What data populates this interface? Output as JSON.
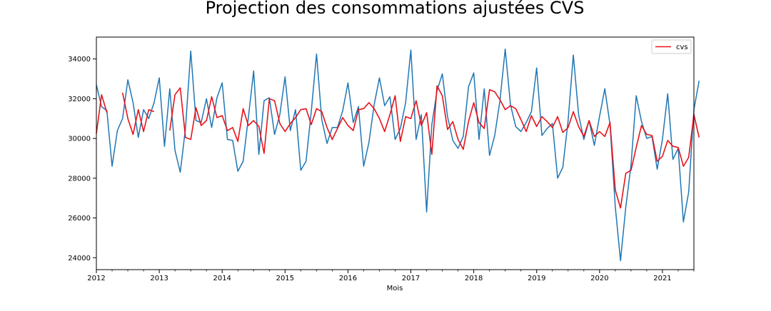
{
  "chart_data": {
    "type": "line",
    "title": "Projection des consommations ajustées CVS",
    "xlabel": "Mois",
    "ylabel": "",
    "xlim": [
      2012.0,
      2021.5
    ],
    "ylim": [
      23400,
      35100
    ],
    "x_ticks": [
      2012,
      2013,
      2014,
      2015,
      2016,
      2017,
      2018,
      2019,
      2020,
      2021
    ],
    "x_tick_labels": [
      "2012",
      "2013",
      "2014",
      "2015",
      "2016",
      "2017",
      "2018",
      "2019",
      "2020",
      "2021"
    ],
    "y_ticks": [
      24000,
      26000,
      28000,
      30000,
      32000,
      34000
    ],
    "y_tick_labels": [
      "24000",
      "26000",
      "28000",
      "30000",
      "32000",
      "34000"
    ],
    "grid": false,
    "legend": {
      "position": "top-right",
      "entries": [
        "cvs"
      ]
    },
    "x_start": "2012-01",
    "x_step": "month",
    "series": [
      {
        "name": "",
        "color": "#1f77b4",
        "values": [
          32700,
          31600,
          31400,
          28600,
          30400,
          31000,
          32950,
          31800,
          30050,
          31450,
          31000,
          31800,
          33050,
          29600,
          32500,
          29400,
          28300,
          30500,
          34400,
          30900,
          30800,
          32000,
          30550,
          32050,
          32800,
          29950,
          29900,
          28350,
          28850,
          31050,
          33400,
          29200,
          31900,
          32050,
          30200,
          31200,
          33100,
          30400,
          31450,
          28400,
          28850,
          31350,
          34250,
          30950,
          29750,
          30550,
          30550,
          31400,
          32800,
          30800,
          31600,
          28600,
          29800,
          31700,
          33050,
          31650,
          32100,
          29950,
          30500,
          31800,
          34450,
          29950,
          31200,
          26300,
          30700,
          32400,
          33250,
          31100,
          29900,
          29500,
          30100,
          32600,
          33300,
          29950,
          32500,
          29150,
          30150,
          31900,
          34500,
          31700,
          30600,
          30350,
          30800,
          31350,
          33550,
          30150,
          30500,
          30750,
          28000,
          28550,
          30900,
          34200,
          31200,
          29950,
          30900,
          29650,
          31100,
          32500,
          30700,
          26550,
          23850,
          26550,
          28650,
          32150,
          30850,
          30000,
          30100,
          28450,
          29950,
          32250,
          28950,
          29500,
          25800,
          27300,
          31450,
          32900
        ]
      },
      {
        "name": "cvs",
        "color": "#e8131a",
        "values": [
          30250,
          32200,
          31300,
          null,
          null,
          32300,
          31000,
          30200,
          31450,
          30350,
          31450,
          31350,
          null,
          null,
          30400,
          32200,
          32550,
          30050,
          29950,
          31550,
          30650,
          30900,
          32100,
          31050,
          31150,
          30400,
          30550,
          29850,
          31500,
          30650,
          30900,
          30600,
          29250,
          32000,
          31900,
          30750,
          30350,
          30750,
          31050,
          31450,
          31500,
          30700,
          31500,
          31350,
          30550,
          29950,
          30500,
          31050,
          30650,
          30400,
          31450,
          31500,
          31800,
          31500,
          31000,
          30350,
          31200,
          32150,
          29850,
          31100,
          31000,
          31900,
          30650,
          31300,
          29200,
          32650,
          32150,
          30450,
          30850,
          29950,
          29450,
          30850,
          31800,
          30800,
          30500,
          32450,
          32350,
          31950,
          31450,
          31650,
          31500,
          30950,
          30350,
          31150,
          30600,
          31100,
          30850,
          30550,
          31100,
          30300,
          30550,
          31350,
          30600,
          30100,
          30900,
          30100,
          30350,
          30100,
          30800,
          27400,
          26500,
          28250,
          28400,
          29550,
          30650,
          30200,
          30150,
          28850,
          29100,
          29900,
          29600,
          29550,
          28600,
          29050,
          31200,
          30050
        ]
      }
    ]
  }
}
